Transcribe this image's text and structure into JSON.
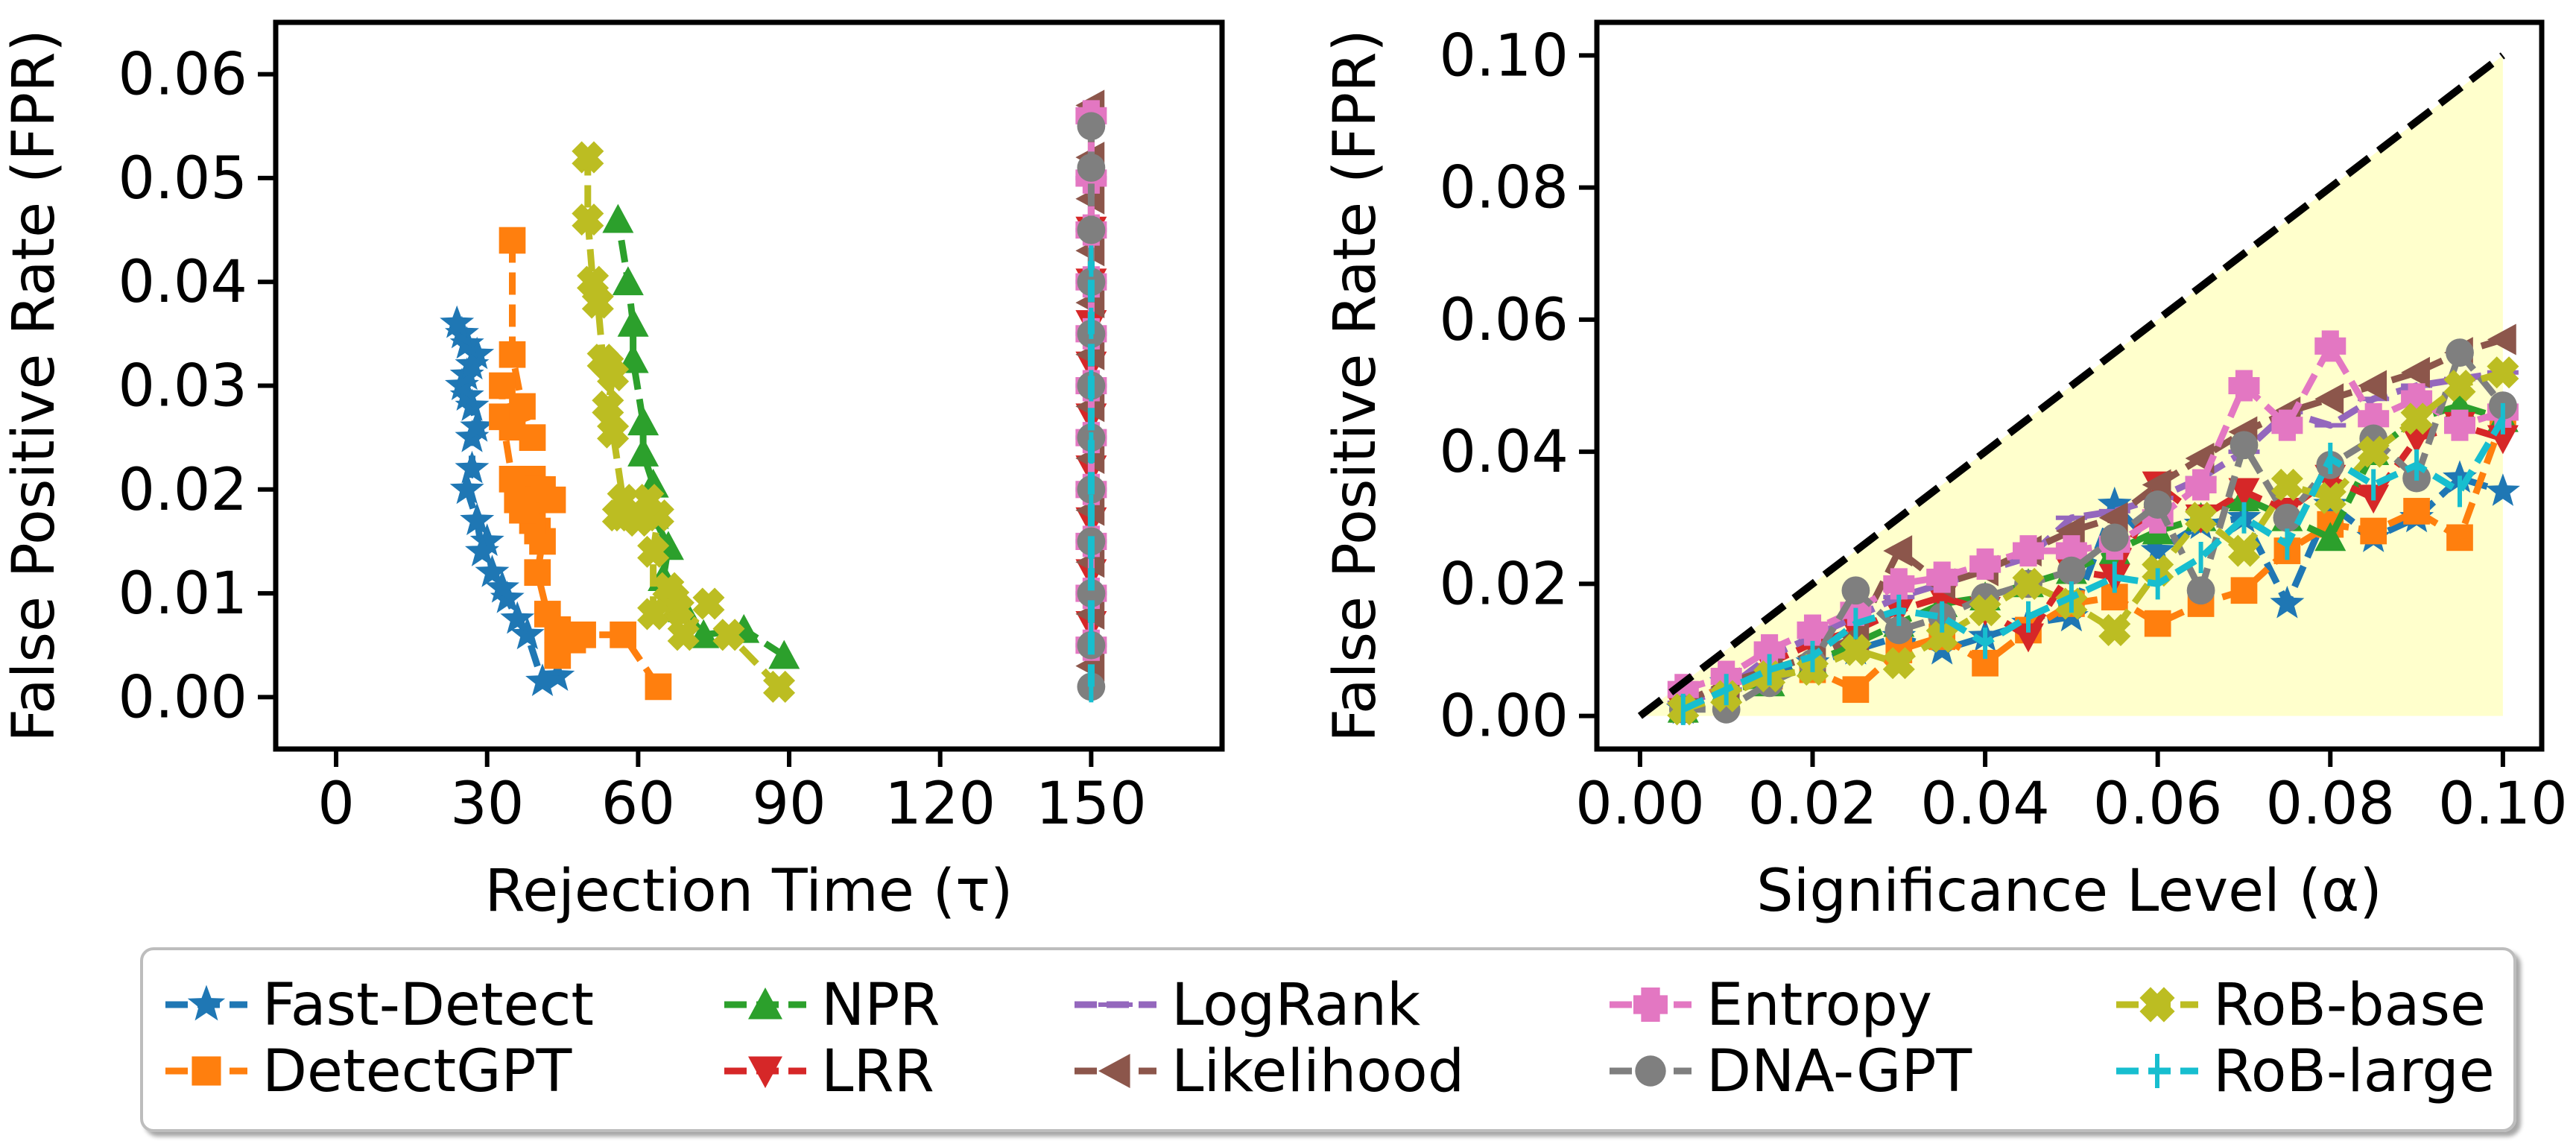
{
  "chart_data": [
    {
      "type": "line",
      "xlabel": "Rejection Time (τ)",
      "ylabel": "False Positive Rate (FPR)",
      "xlim": [
        -12,
        176
      ],
      "ylim": [
        -0.005,
        0.065
      ],
      "xticks": [
        "0",
        "30",
        "60",
        "90",
        "120",
        "150"
      ],
      "yticks": [
        "0.00",
        "0.01",
        "0.02",
        "0.03",
        "0.04",
        "0.05",
        "0.06"
      ],
      "series": [
        {
          "name": "Fast-Detect",
          "color": "#1f77b4",
          "marker": "star",
          "x": [
            44,
            41,
            38,
            36,
            34,
            33,
            31,
            30,
            29,
            28,
            26,
            27,
            27,
            28,
            27,
            26,
            25,
            26,
            27,
            28,
            26,
            25,
            24
          ],
          "y": [
            0.002,
            0.0015,
            0.006,
            0.0075,
            0.0095,
            0.0105,
            0.012,
            0.015,
            0.014,
            0.017,
            0.02,
            0.022,
            0.025,
            0.026,
            0.028,
            0.029,
            0.03,
            0.031,
            0.032,
            0.033,
            0.034,
            0.035,
            0.036
          ]
        },
        {
          "name": "DetectGPT",
          "color": "#ff7f0e",
          "marker": "square",
          "x": [
            64,
            57,
            49,
            47,
            44,
            44,
            42,
            40,
            41,
            40,
            39,
            41,
            43,
            39,
            40,
            36,
            37,
            35,
            33,
            33,
            35,
            39,
            37,
            35,
            35
          ],
          "y": [
            0.001,
            0.006,
            0.006,
            0.0055,
            0.004,
            0.0065,
            0.008,
            0.012,
            0.015,
            0.016,
            0.017,
            0.02,
            0.019,
            0.021,
            0.02,
            0.019,
            0.018,
            0.021,
            0.027,
            0.03,
            0.026,
            0.025,
            0.028,
            0.033,
            0.044
          ]
        },
        {
          "name": "NPR",
          "color": "#2ca02c",
          "marker": "triangle-up",
          "x": [
            89,
            81,
            73,
            69,
            65,
            66,
            63,
            63,
            61,
            61,
            59,
            59,
            58,
            56
          ],
          "y": [
            0.004,
            0.0065,
            0.006,
            0.0085,
            0.0115,
            0.0145,
            0.0175,
            0.0205,
            0.0235,
            0.0265,
            0.0325,
            0.036,
            0.04,
            0.046
          ]
        },
        {
          "name": "LRR",
          "color": "#d62728",
          "marker": "triangle-down",
          "x": [
            150,
            150,
            150,
            150,
            150,
            150,
            150,
            150,
            150,
            150,
            150
          ],
          "y": [
            0.004,
            0.007,
            0.012,
            0.017,
            0.022,
            0.027,
            0.032,
            0.036,
            0.04,
            0.044,
            0.045
          ]
        },
        {
          "name": "LogRank",
          "color": "#9467bd",
          "marker": "hline",
          "x": [
            150,
            150,
            150,
            150,
            150,
            150,
            150,
            150,
            150,
            150
          ],
          "y": [
            0.005,
            0.01,
            0.015,
            0.02,
            0.025,
            0.03,
            0.035,
            0.04,
            0.045,
            0.05
          ]
        },
        {
          "name": "Likelihood",
          "color": "#8c564b",
          "marker": "triangle-left",
          "x": [
            150,
            150,
            150,
            150,
            150,
            150,
            150,
            150,
            150,
            150,
            150,
            150
          ],
          "y": [
            0.003,
            0.008,
            0.013,
            0.018,
            0.023,
            0.028,
            0.033,
            0.038,
            0.043,
            0.048,
            0.052,
            0.057
          ]
        },
        {
          "name": "Entropy",
          "color": "#e377c2",
          "marker": "plus",
          "x": [
            150,
            150,
            150,
            150,
            150,
            150,
            150,
            150,
            150,
            150,
            150
          ],
          "y": [
            0.005,
            0.01,
            0.015,
            0.02,
            0.025,
            0.03,
            0.035,
            0.04,
            0.045,
            0.05,
            0.056
          ]
        },
        {
          "name": "DNA-GPT",
          "color": "#7f7f7f",
          "marker": "circle",
          "x": [
            150,
            150,
            150,
            150,
            150,
            150,
            150,
            150,
            150,
            150,
            150,
            150
          ],
          "y": [
            0.001,
            0.005,
            0.01,
            0.015,
            0.02,
            0.025,
            0.03,
            0.035,
            0.04,
            0.045,
            0.051,
            0.055
          ]
        },
        {
          "name": "RoB-base",
          "color": "#bcbd22",
          "marker": "x-filled",
          "x": [
            88,
            78,
            74,
            69,
            68,
            67,
            66,
            63,
            63,
            64,
            62,
            60,
            57,
            56,
            57,
            55,
            54,
            55,
            54,
            53,
            52,
            51,
            50,
            50
          ],
          "y": [
            0.001,
            0.006,
            0.009,
            0.006,
            0.0085,
            0.0095,
            0.0105,
            0.008,
            0.014,
            0.0175,
            0.019,
            0.017,
            0.0175,
            0.0175,
            0.019,
            0.0255,
            0.028,
            0.031,
            0.032,
            0.0325,
            0.038,
            0.04,
            0.046,
            0.052
          ]
        },
        {
          "name": "RoB-large",
          "color": "#17becf",
          "marker": "vline",
          "x": [
            150,
            150,
            150,
            150,
            150,
            150,
            150,
            150
          ],
          "y": [
            0.001,
            0.006,
            0.012,
            0.018,
            0.024,
            0.03,
            0.036,
            0.042
          ]
        }
      ]
    },
    {
      "type": "line",
      "xlabel": "Significance Level (α)",
      "ylabel": "False Positive Rate (FPR)",
      "xlim": [
        -0.005,
        0.1045
      ],
      "ylim": [
        -0.005,
        0.105
      ],
      "xticks": [
        "0.00",
        "0.02",
        "0.04",
        "0.06",
        "0.08",
        "0.10"
      ],
      "yticks": [
        "0.00",
        "0.02",
        "0.04",
        "0.06",
        "0.08",
        "0.10"
      ],
      "reference_line": {
        "x": [
          0,
          0.1
        ],
        "y": [
          0,
          0.1
        ],
        "style": "dashed",
        "color": "#000000"
      },
      "fill_region": {
        "x": [
          0,
          0.1
        ],
        "ylow": [
          0,
          0
        ],
        "yhigh": [
          0,
          0.1
        ],
        "color": "#ffffcc"
      },
      "x": [
        0.005,
        0.01,
        0.015,
        0.02,
        0.025,
        0.03,
        0.035,
        0.04,
        0.045,
        0.05,
        0.055,
        0.06,
        0.065,
        0.07,
        0.075,
        0.08,
        0.085,
        0.09,
        0.095,
        0.1
      ],
      "series": [
        {
          "name": "Fast-Detect",
          "color": "#1f77b4",
          "marker": "star",
          "y": [
            0.001,
            0.005,
            0.006,
            0.008,
            0.01,
            0.012,
            0.01,
            0.012,
            0.014,
            0.015,
            0.032,
            0.025,
            0.029,
            0.03,
            0.017,
            0.032,
            0.027,
            0.03,
            0.036,
            0.034
          ]
        },
        {
          "name": "DetectGPT",
          "color": "#ff7f0e",
          "marker": "square",
          "y": [
            0.001,
            0.005,
            0.006,
            0.007,
            0.004,
            0.01,
            0.012,
            0.008,
            0.013,
            0.017,
            0.018,
            0.014,
            0.017,
            0.019,
            0.025,
            0.029,
            0.028,
            0.031,
            0.027,
            0.045
          ]
        },
        {
          "name": "NPR",
          "color": "#2ca02c",
          "marker": "triangle-up",
          "y": [
            0.001,
            0.004,
            0.005,
            0.008,
            0.011,
            0.014,
            0.017,
            0.018,
            0.02,
            0.022,
            0.025,
            0.028,
            0.03,
            0.033,
            0.03,
            0.027,
            0.04,
            0.045,
            0.047,
            0.045
          ]
        },
        {
          "name": "LRR",
          "color": "#d62728",
          "marker": "triangle-down",
          "y": [
            0.001,
            0.004,
            0.008,
            0.011,
            0.013,
            0.016,
            0.018,
            0.016,
            0.012,
            0.022,
            0.021,
            0.035,
            0.03,
            0.034,
            0.031,
            0.036,
            0.033,
            0.042,
            0.044,
            0.042
          ]
        },
        {
          "name": "LogRank",
          "color": "#9467bd",
          "marker": "hline",
          "y": [
            0.002,
            0.004,
            0.009,
            0.012,
            0.015,
            0.018,
            0.02,
            0.022,
            0.024,
            0.03,
            0.031,
            0.033,
            0.036,
            0.04,
            0.046,
            0.044,
            0.048,
            0.05,
            0.051,
            0.052
          ]
        },
        {
          "name": "Likelihood",
          "color": "#8c564b",
          "marker": "triangle-left",
          "y": [
            0.002,
            0.005,
            0.007,
            0.009,
            0.012,
            0.025,
            0.02,
            0.022,
            0.025,
            0.028,
            0.03,
            0.035,
            0.039,
            0.043,
            0.046,
            0.048,
            0.05,
            0.052,
            0.055,
            0.057
          ]
        },
        {
          "name": "Entropy",
          "color": "#e377c2",
          "marker": "plus",
          "y": [
            0.004,
            0.006,
            0.01,
            0.013,
            0.016,
            0.02,
            0.021,
            0.023,
            0.025,
            0.025,
            0.026,
            0.03,
            0.035,
            0.05,
            0.044,
            0.056,
            0.045,
            0.048,
            0.044,
            0.046
          ]
        },
        {
          "name": "DNA-GPT",
          "color": "#7f7f7f",
          "marker": "circle",
          "y": [
            0.001,
            0.001,
            0.005,
            0.008,
            0.019,
            0.013,
            0.015,
            0.018,
            0.02,
            0.022,
            0.027,
            0.032,
            0.019,
            0.041,
            0.03,
            0.038,
            0.042,
            0.036,
            0.055,
            0.047
          ]
        },
        {
          "name": "RoB-base",
          "color": "#bcbd22",
          "marker": "x-filled",
          "y": [
            0.001,
            0.003,
            0.006,
            0.007,
            0.01,
            0.008,
            0.012,
            0.016,
            0.02,
            0.017,
            0.013,
            0.022,
            0.03,
            0.025,
            0.035,
            0.033,
            0.04,
            0.045,
            0.05,
            0.052
          ]
        },
        {
          "name": "RoB-large",
          "color": "#17becf",
          "marker": "vline",
          "y": [
            0.001,
            0.004,
            0.007,
            0.009,
            0.014,
            0.016,
            0.015,
            0.011,
            0.015,
            0.018,
            0.021,
            0.02,
            0.024,
            0.03,
            0.026,
            0.039,
            0.035,
            0.038,
            0.034,
            0.045
          ]
        }
      ]
    }
  ],
  "legend": {
    "placement": "bottom",
    "columns": 5,
    "entries": [
      "Fast-Detect",
      "DetectGPT",
      "NPR",
      "LRR",
      "LogRank",
      "Likelihood",
      "Entropy",
      "DNA-GPT",
      "RoB-base",
      "RoB-large"
    ]
  }
}
